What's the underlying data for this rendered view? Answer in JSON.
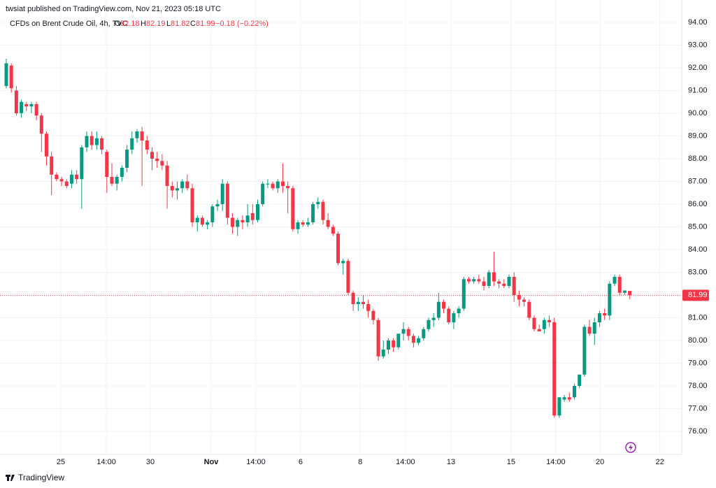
{
  "header": {
    "published": "twsiat published on TradingView.com, Nov 21, 2023 05:18 UTC",
    "symbol": "CFDs on Brent Crude Oil, 4h, TVC",
    "ohlc_labels": [
      "O",
      "H",
      "L",
      "C"
    ],
    "change": "−0.18 (−0.22%)"
  },
  "footer": {
    "brand": "TradingView"
  },
  "chart_data": {
    "type": "candlestick",
    "up_color": "#089981",
    "down_color": "#f23645",
    "grid": true,
    "open": [
      91.2,
      92.1,
      91.0,
      90.0,
      90.4,
      90.3,
      90.4,
      89.9,
      89.1,
      88.1,
      87.3,
      87.1,
      87.0,
      86.9,
      87.3,
      87.1,
      88.5,
      89.0,
      88.6,
      88.9,
      88.3,
      87.2,
      86.9,
      87.2,
      87.6,
      88.4,
      88.9,
      89.2,
      88.8,
      88.3,
      88.0,
      87.9,
      87.7,
      86.8,
      86.6,
      86.7,
      87.0,
      86.7,
      85.2,
      85.4,
      85.1,
      85.2,
      85.9,
      86.0,
      86.9,
      85.4,
      85.0,
      85.3,
      85.2,
      85.6,
      85.3,
      86.0,
      86.9,
      86.9,
      86.7,
      87.0,
      86.8,
      86.7,
      84.9,
      85.2,
      85.1,
      85.2,
      86.0,
      86.1,
      85.3,
      85.0,
      84.7,
      83.4,
      83.5,
      82.1,
      81.6,
      81.7,
      81.6,
      81.3,
      80.9,
      79.3,
      79.6,
      80.0,
      79.7,
      80.3,
      80.5,
      80.2,
      79.9,
      80.1,
      80.5,
      80.9,
      81.0,
      81.7,
      81.4,
      80.8,
      81.2,
      81.4,
      82.7,
      82.6,
      82.7,
      82.6,
      82.4,
      83.0,
      82.6,
      82.5,
      82.4,
      82.8,
      82.0,
      81.8,
      81.7,
      81.0,
      80.5,
      80.5,
      80.9,
      80.8,
      76.7,
      77.4,
      77.5,
      77.5,
      78.0,
      78.5,
      80.6,
      80.3,
      80.8,
      81.2,
      81.1,
      82.5,
      82.8,
      82.1,
      82.18
    ],
    "high": [
      92.4,
      92.2,
      91.2,
      90.6,
      90.5,
      90.5,
      90.5,
      90.0,
      89.2,
      88.3,
      87.4,
      87.2,
      87.1,
      87.5,
      87.5,
      88.6,
      89.2,
      89.2,
      89.2,
      89.0,
      88.4,
      87.8,
      87.3,
      87.7,
      88.6,
      89.2,
      89.3,
      89.4,
      89.0,
      88.5,
      88.3,
      88.2,
      87.9,
      87.0,
      87.0,
      87.1,
      87.3,
      86.9,
      85.5,
      85.5,
      85.3,
      86.0,
      86.2,
      87.1,
      87.0,
      85.6,
      85.4,
      85.5,
      86.0,
      86.0,
      86.2,
      87.0,
      87.1,
      87.0,
      87.1,
      87.8,
      87.0,
      86.8,
      85.3,
      85.3,
      85.4,
      86.1,
      86.3,
      86.2,
      85.6,
      85.1,
      84.8,
      83.6,
      83.6,
      82.2,
      81.9,
      82.0,
      81.8,
      81.4,
      81.0,
      80.0,
      80.1,
      80.1,
      80.3,
      80.8,
      80.6,
      80.3,
      80.2,
      80.6,
      81.0,
      81.2,
      82.1,
      81.8,
      81.5,
      81.3,
      81.5,
      82.8,
      82.8,
      82.8,
      82.9,
      82.8,
      83.1,
      83.9,
      82.7,
      82.7,
      82.9,
      83.0,
      82.2,
      81.9,
      81.8,
      81.1,
      80.7,
      81.0,
      81.1,
      81.0,
      77.5,
      77.6,
      77.7,
      78.1,
      78.5,
      80.7,
      80.9,
      81.0,
      81.3,
      81.4,
      82.6,
      82.9,
      82.9,
      82.2,
      82.19
    ],
    "low": [
      91.1,
      90.9,
      89.9,
      89.8,
      90.1,
      90.0,
      89.7,
      88.3,
      87.7,
      86.4,
      87.0,
      86.8,
      86.7,
      86.7,
      86.9,
      85.8,
      88.3,
      88.4,
      88.4,
      88.2,
      86.5,
      86.8,
      86.6,
      87.0,
      87.4,
      88.2,
      88.7,
      86.8,
      88.2,
      87.5,
      87.6,
      87.5,
      85.8,
      86.3,
      86.2,
      86.5,
      86.6,
      85.0,
      84.8,
      85.0,
      84.9,
      85.0,
      85.7,
      85.7,
      85.1,
      84.7,
      84.6,
      84.9,
      85.0,
      85.1,
      85.2,
      85.9,
      86.7,
      86.6,
      86.5,
      86.5,
      85.6,
      84.8,
      84.7,
      85.0,
      85.0,
      85.1,
      85.8,
      85.1,
      84.9,
      84.6,
      83.3,
      82.9,
      82.0,
      81.3,
      81.3,
      81.4,
      81.0,
      80.7,
      79.1,
      79.2,
      79.4,
      79.5,
      79.6,
      80.0,
      80.0,
      79.7,
      79.8,
      80.0,
      80.4,
      80.6,
      80.9,
      81.2,
      80.7,
      80.5,
      81.0,
      81.3,
      82.5,
      82.5,
      82.5,
      82.2,
      82.3,
      82.4,
      82.3,
      82.3,
      82.3,
      81.7,
      81.5,
      81.5,
      80.9,
      80.4,
      80.4,
      80.3,
      80.6,
      76.6,
      76.6,
      77.3,
      77.3,
      77.4,
      77.9,
      78.4,
      80.2,
      79.8,
      80.6,
      80.9,
      80.9,
      82.4,
      82.0,
      82.0,
      81.82
    ],
    "close": [
      92.2,
      91.1,
      90.0,
      90.5,
      90.3,
      90.4,
      89.9,
      89.1,
      88.1,
      87.3,
      87.1,
      87.0,
      86.8,
      87.3,
      87.1,
      88.5,
      89.0,
      88.6,
      88.9,
      88.4,
      87.2,
      86.9,
      87.2,
      87.6,
      88.4,
      88.9,
      89.2,
      88.8,
      88.4,
      88.0,
      87.9,
      87.7,
      86.8,
      86.6,
      86.7,
      87.0,
      86.7,
      85.2,
      85.4,
      85.1,
      85.2,
      85.9,
      86.0,
      86.9,
      85.4,
      85.0,
      85.3,
      85.2,
      85.5,
      85.3,
      86.0,
      86.9,
      86.9,
      86.7,
      87.0,
      86.8,
      86.7,
      84.9,
      85.2,
      85.1,
      85.2,
      86.0,
      86.1,
      85.3,
      85.0,
      84.7,
      83.4,
      83.5,
      82.1,
      81.6,
      81.7,
      81.6,
      81.3,
      80.9,
      79.3,
      79.6,
      80.0,
      79.7,
      80.3,
      80.5,
      80.2,
      79.9,
      80.1,
      80.5,
      80.9,
      81.0,
      81.7,
      81.4,
      80.8,
      81.2,
      81.4,
      82.7,
      82.6,
      82.7,
      82.6,
      82.4,
      83.0,
      82.6,
      82.5,
      82.4,
      82.8,
      82.0,
      81.8,
      81.7,
      81.0,
      80.5,
      80.4,
      80.9,
      80.8,
      76.7,
      77.5,
      77.5,
      77.4,
      78.0,
      78.5,
      80.6,
      80.3,
      80.8,
      81.2,
      81.1,
      82.5,
      82.8,
      82.1,
      82.2,
      81.99
    ],
    "xlim": [
      -1.25,
      134.35
    ],
    "xticks": [
      {
        "value": 10.85,
        "label": "25"
      },
      {
        "value": 19.9,
        "label": "14:00"
      },
      {
        "value": 28.65,
        "label": "30"
      },
      {
        "value": 40.75,
        "label": "Nov"
      },
      {
        "value": 49.65,
        "label": "14:00"
      },
      {
        "value": 58.55,
        "label": "6"
      },
      {
        "value": 70.4,
        "label": "8"
      },
      {
        "value": 79.4,
        "label": "14:00"
      },
      {
        "value": 88.45,
        "label": "13"
      },
      {
        "value": 100.4,
        "label": "15"
      },
      {
        "value": 109.3,
        "label": "14:00"
      },
      {
        "value": 118.1,
        "label": "20"
      },
      {
        "value": 130.0,
        "label": "22"
      }
    ],
    "ylim": [
      75,
      94.5
    ],
    "yticks": [
      {
        "value": 76,
        "label": "76.00"
      },
      {
        "value": 77,
        "label": "77.00"
      },
      {
        "value": 78,
        "label": "78.00"
      },
      {
        "value": 79,
        "label": "79.00"
      },
      {
        "value": 80,
        "label": "80.00"
      },
      {
        "value": 81,
        "label": "81.00"
      },
      {
        "value": 82,
        "label": "82.00"
      },
      {
        "value": 83,
        "label": "83.00"
      },
      {
        "value": 84,
        "label": "84.00"
      },
      {
        "value": 85,
        "label": "85.00"
      },
      {
        "value": 86,
        "label": "86.00"
      },
      {
        "value": 87,
        "label": "87.00"
      },
      {
        "value": 88,
        "label": "88.00"
      },
      {
        "value": 89,
        "label": "89.00"
      },
      {
        "value": 90,
        "label": "90.00"
      },
      {
        "value": 91,
        "label": "91.00"
      },
      {
        "value": 92,
        "label": "92.00"
      },
      {
        "value": 93,
        "label": "93.00"
      },
      {
        "value": 94,
        "label": "94.00"
      }
    ]
  }
}
